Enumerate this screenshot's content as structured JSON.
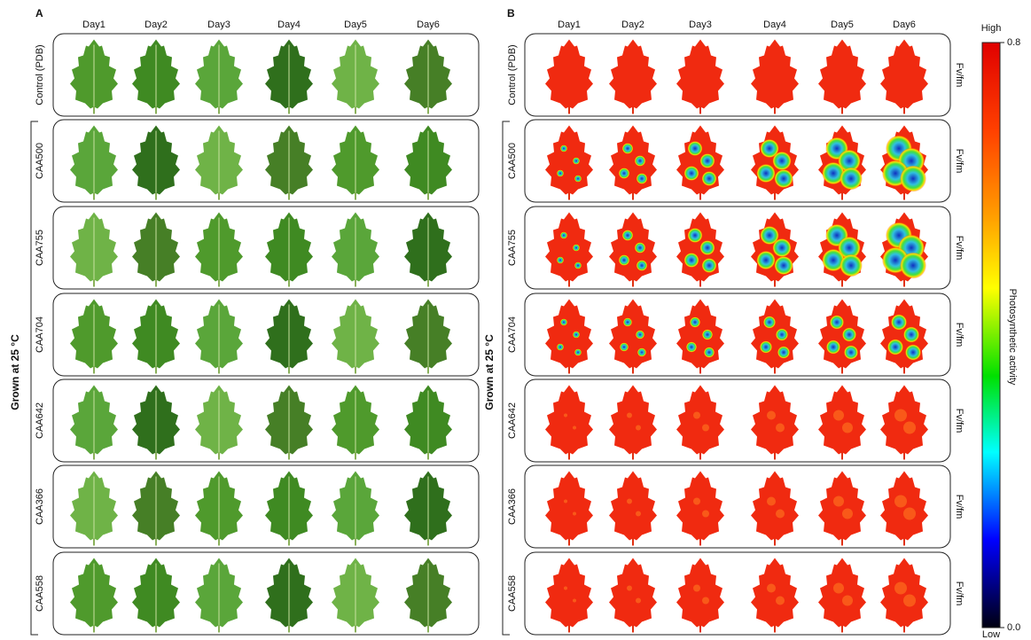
{
  "panels": [
    {
      "label": "A",
      "days": [
        "Day1",
        "Day2",
        "Day3",
        "Day4",
        "Day5",
        "Day6"
      ],
      "rows": [
        "Control (PDB)",
        "CAA500",
        "CAA755",
        "CAA704",
        "CAA642",
        "CAA366",
        "CAA558"
      ],
      "group_label": "Grown at 25 °C"
    },
    {
      "label": "B",
      "days": [
        "Day1",
        "Day2",
        "Day3",
        "Day4",
        "Day5",
        "Day6"
      ],
      "rows": [
        "Control (PDB)",
        "CAA500",
        "CAA755",
        "CAA704",
        "CAA642",
        "CAA366",
        "CAA558"
      ],
      "group_label": "Grown at 25 °C",
      "row_tag": "Fv/fm"
    }
  ],
  "colorbar": {
    "top_label": "High",
    "title": "Photosynthetic activity",
    "bottom_label": "Low",
    "ticks": [
      {
        "value": 0,
        "label": "0.0"
      },
      0.8
    ],
    "lim": [
      0,
      0.8
    ]
  }
}
